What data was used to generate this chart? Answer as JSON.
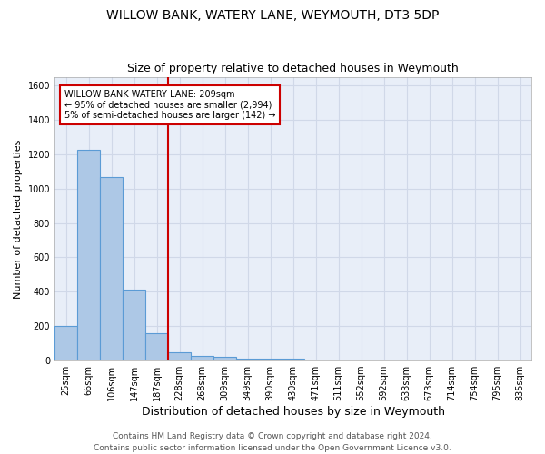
{
  "title": "WILLOW BANK, WATERY LANE, WEYMOUTH, DT3 5DP",
  "subtitle": "Size of property relative to detached houses in Weymouth",
  "xlabel": "Distribution of detached houses by size in Weymouth",
  "ylabel": "Number of detached properties",
  "bin_labels": [
    "25sqm",
    "66sqm",
    "106sqm",
    "147sqm",
    "187sqm",
    "228sqm",
    "268sqm",
    "309sqm",
    "349sqm",
    "390sqm",
    "430sqm",
    "471sqm",
    "511sqm",
    "552sqm",
    "592sqm",
    "633sqm",
    "673sqm",
    "714sqm",
    "754sqm",
    "795sqm",
    "835sqm"
  ],
  "bar_heights": [
    200,
    1225,
    1065,
    410,
    160,
    50,
    25,
    20,
    10,
    10,
    10,
    0,
    0,
    0,
    0,
    0,
    0,
    0,
    0,
    0,
    0
  ],
  "bar_color": "#adc8e6",
  "bar_edge_color": "#5b9bd5",
  "property_size": 209,
  "annotation_text_line1": "WILLOW BANK WATERY LANE: 209sqm",
  "annotation_text_line2": "← 95% of detached houses are smaller (2,994)",
  "annotation_text_line3": "5% of semi-detached houses are larger (142) →",
  "red_line_color": "#cc0000",
  "annotation_box_color": "#ffffff",
  "annotation_box_edge": "#cc0000",
  "ylim": [
    0,
    1650
  ],
  "yticks": [
    0,
    200,
    400,
    600,
    800,
    1000,
    1200,
    1400,
    1600
  ],
  "grid_color": "#d0d8e8",
  "bg_color": "#e8eef8",
  "footer_line1": "Contains HM Land Registry data © Crown copyright and database right 2024.",
  "footer_line2": "Contains public sector information licensed under the Open Government Licence v3.0.",
  "title_fontsize": 10,
  "subtitle_fontsize": 9,
  "xlabel_fontsize": 9,
  "ylabel_fontsize": 8,
  "tick_fontsize": 7,
  "footer_fontsize": 6.5
}
